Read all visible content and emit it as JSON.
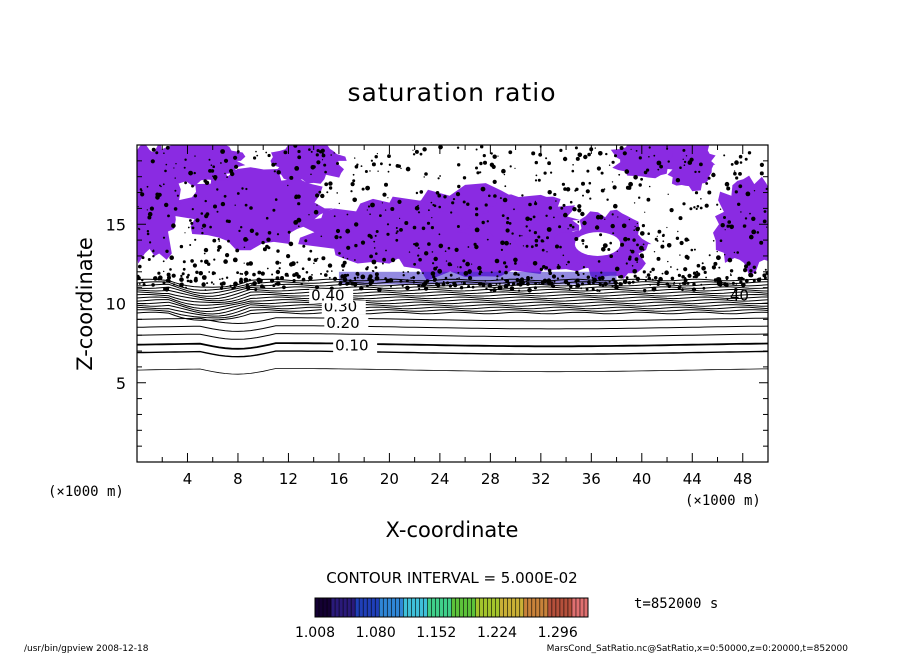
{
  "chart_data": {
    "type": "contour",
    "title": "saturation ratio",
    "xlabel": "X-coordinate",
    "ylabel": "Z-coordinate",
    "x_unit": "(×1000 m)",
    "y_unit": "(×1000 m)",
    "xlim": [
      0,
      50
    ],
    "ylim": [
      0,
      20
    ],
    "x_ticks": [
      "4",
      "8",
      "12",
      "16",
      "20",
      "24",
      "28",
      "32",
      "36",
      "40",
      "44",
      "48"
    ],
    "y_ticks": [
      "5",
      "10",
      "15"
    ],
    "contour_interval_label": "CONTOUR INTERVAL = 5.000E-02",
    "contour_labels": [
      {
        "label": "0.10",
        "value": 0.1
      },
      {
        "label": "0.20",
        "value": 0.2
      },
      {
        "label": "0.30",
        "value": 0.3
      },
      {
        "label": "0.40",
        "value": 0.4
      }
    ],
    "colorbar": {
      "ticks": [
        "1.008",
        "1.080",
        "1.152",
        "1.224",
        "1.296"
      ],
      "range": [
        1.008,
        1.332
      ],
      "colors": [
        "#140033",
        "#2a1a7a",
        "#1f3fb8",
        "#2f86d6",
        "#3fc0d9",
        "#3fcf8a",
        "#5cc23a",
        "#a3c42c",
        "#c9b036",
        "#c8823a",
        "#b5503b",
        "#e07070"
      ]
    },
    "time_label": "t=852000 s",
    "fill_color": "#8a2be2",
    "grid": false,
    "legend": "none"
  },
  "footer": {
    "left": "/usr/bin/gpview 2008-12-18",
    "right": "MarsCond_SatRatio.nc@SatRatio,x=0:50000,z=0:20000,t=852000"
  }
}
